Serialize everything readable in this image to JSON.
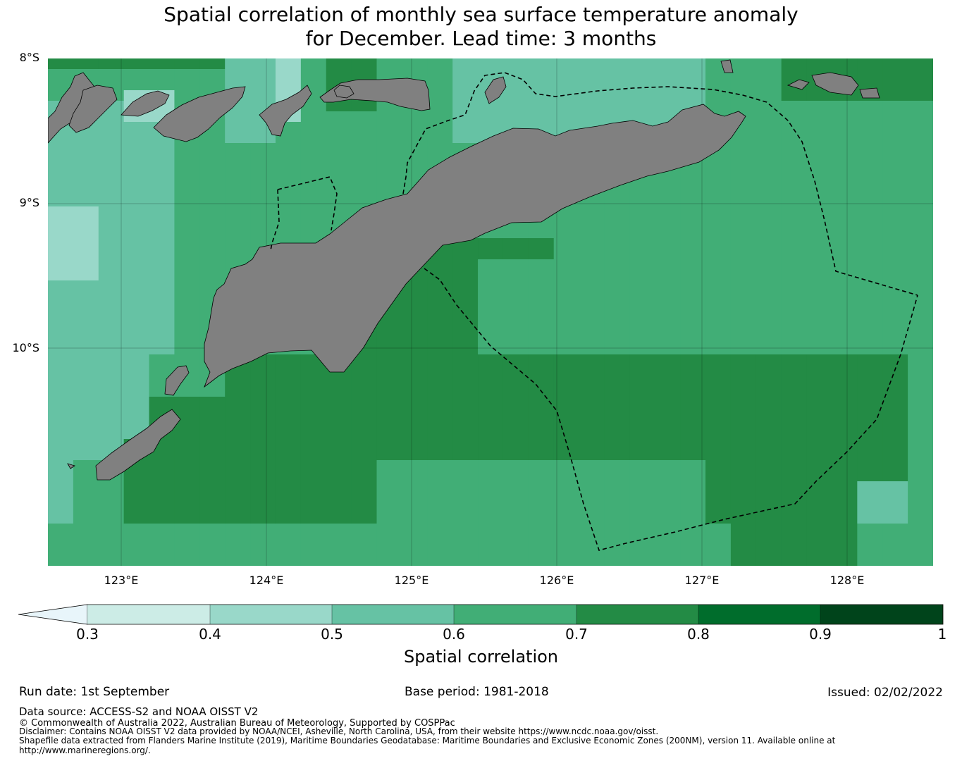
{
  "title": {
    "line1": "Spatial correlation of monthly sea surface temperature anomaly",
    "line2": "for December. Lead time: 3 months"
  },
  "axes": {
    "lat_labels": [
      "8°S",
      "9°S",
      "10°S"
    ],
    "lon_labels": [
      "123°E",
      "124°E",
      "125°E",
      "126°E",
      "127°E",
      "128°E"
    ]
  },
  "colorbar": {
    "label": "Spatial correlation",
    "ticks": [
      "0.3",
      "0.4",
      "0.5",
      "0.6",
      "0.7",
      "0.8",
      "0.9",
      "1"
    ],
    "colors": {
      "below_0.3": "#e8f5fa",
      "0.3-0.4": "#ccece6",
      "0.4-0.5": "#99d8c9",
      "0.5-0.6": "#66c2a4",
      "0.6-0.7": "#41ae76",
      "0.7-0.8": "#238b45",
      "0.8-0.9": "#006d2c",
      "0.9-1": "#00441b"
    }
  },
  "map_colors": {
    "land": "#808080",
    "eez_boundary": "#000000"
  },
  "footer": {
    "run_date": "Run date: 1st September",
    "base_period": "Base period: 1981-2018",
    "issued": "Issued: 02/02/2022",
    "data_source": "Data source: ACCESS-S2 and NOAA OISST V2",
    "copyright": "© Commonwealth of Australia 2022, Australian Bureau of Meteorology, Supported by COSPPac",
    "disclaimer": "Disclaimer: Contains NOAA OISST V2 data provided by NOAA/NCEI, Asheville, North Carolina, USA, from their website https://www.ncdc.noaa.gov/oisst.",
    "shapefile_line1": "Shapefile data extracted from Flanders Marine Institute (2019), Maritime Boundaries Geodatabase: Maritime Boundaries and Exclusive Economic Zones (200NM), version 11. Available online at",
    "shapefile_line2": "http://www.marineregions.org/."
  }
}
